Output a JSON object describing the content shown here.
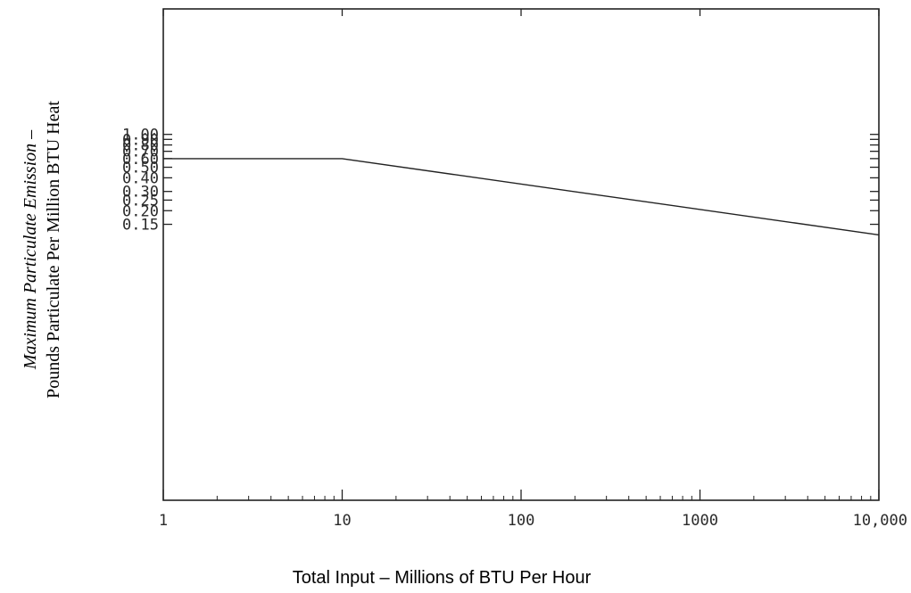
{
  "chart_data": {
    "type": "line",
    "x_scale": "log",
    "y_scale": "log",
    "xlim": [
      1,
      10000
    ],
    "x_ticks": [
      {
        "value": 1,
        "label": "1"
      },
      {
        "value": 10,
        "label": "10"
      },
      {
        "value": 100,
        "label": "100"
      },
      {
        "value": 1000,
        "label": "1000"
      },
      {
        "value": 10000,
        "label": "10,000"
      }
    ],
    "y_ticks": [
      {
        "value": 1.0,
        "label": "1.00"
      },
      {
        "value": 0.9,
        "label": "0.90"
      },
      {
        "value": 0.8,
        "label": "0.80"
      },
      {
        "value": 0.7,
        "label": "0.70"
      },
      {
        "value": 0.6,
        "label": "0.60"
      },
      {
        "value": 0.5,
        "label": "0.50"
      },
      {
        "value": 0.4,
        "label": "0.40"
      },
      {
        "value": 0.3,
        "label": "0.30"
      },
      {
        "value": 0.25,
        "label": "0.25"
      },
      {
        "value": 0.2,
        "label": "0.20"
      },
      {
        "value": 0.15,
        "label": "0.15"
      }
    ],
    "series": [
      {
        "x": [
          1,
          10,
          10000
        ],
        "y": [
          0.6,
          0.6,
          0.12
        ]
      }
    ],
    "xlabel": "Total Input – Millions of BTU Per Hour",
    "ylabel_line1_italic": "Maximum Particulate Emission",
    "ylabel_line1_suffix": " –",
    "ylabel_line2": "Pounds Particulate Per Million BTU Heat",
    "grid": false
  }
}
